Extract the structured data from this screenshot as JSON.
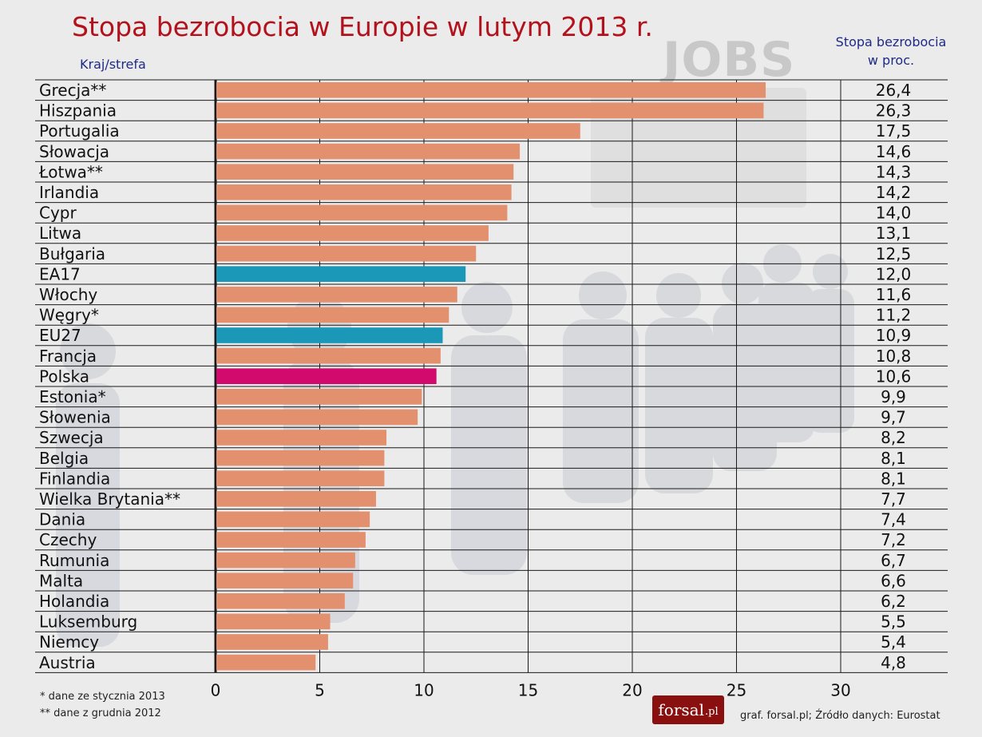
{
  "chart_data": {
    "type": "bar",
    "orientation": "horizontal",
    "title": "Stopa bezrobocia w Europie w lutym 2013 r.",
    "category_header": "Kraj/strefa",
    "value_header_line1": "Stopa bezrobocia",
    "value_header_line2": "w proc.",
    "categories": [
      "Grecja**",
      "Hiszpania",
      "Portugalia",
      "Słowacja",
      "Łotwa**",
      "Irlandia",
      "Cypr",
      "Litwa",
      "Bułgaria",
      "EA17",
      "Włochy",
      "Węgry*",
      "EU27",
      "Francja",
      "Polska",
      "Estonia*",
      "Słowenia",
      "Szwecja",
      "Belgia",
      "Finlandia",
      "Wielka Brytania**",
      "Dania",
      "Czechy",
      "Rumunia",
      "Malta",
      "Holandia",
      "Luksemburg",
      "Niemcy",
      "Austria"
    ],
    "values": [
      26.4,
      26.3,
      17.5,
      14.6,
      14.3,
      14.2,
      14.0,
      13.1,
      12.5,
      12.0,
      11.6,
      11.2,
      10.9,
      10.8,
      10.6,
      9.9,
      9.7,
      8.2,
      8.1,
      8.1,
      7.7,
      7.4,
      7.2,
      6.7,
      6.6,
      6.2,
      5.5,
      5.4,
      4.8
    ],
    "value_labels": [
      "26,4",
      "26,3",
      "17,5",
      "14,6",
      "14,3",
      "14,2",
      "14,0",
      "13,1",
      "12,5",
      "12,0",
      "11,6",
      "11,2",
      "10,9",
      "10,8",
      "10,6",
      "9,9",
      "9,7",
      "8,2",
      "8,1",
      "8,1",
      "7,7",
      "7,4",
      "7,2",
      "6,7",
      "6,6",
      "6,2",
      "5,5",
      "5,4",
      "4,8"
    ],
    "xlim": [
      0,
      30
    ],
    "xticks": [
      0,
      5,
      10,
      15,
      20,
      25,
      30
    ],
    "grid": true,
    "colors": {
      "default": "#e3906f",
      "aggregate": "#1b97b7",
      "highlight": "#d20a6e"
    },
    "bar_color_group": [
      "default",
      "default",
      "default",
      "default",
      "default",
      "default",
      "default",
      "default",
      "default",
      "aggregate",
      "default",
      "default",
      "aggregate",
      "default",
      "highlight",
      "default",
      "default",
      "default",
      "default",
      "default",
      "default",
      "default",
      "default",
      "default",
      "default",
      "default",
      "default",
      "default",
      "default"
    ]
  },
  "background_text": "JOBS",
  "footnotes": [
    "* dane ze stycznia 2013",
    "** dane z grudnia 2012"
  ],
  "logo": {
    "main": "forsal",
    "suffix": ".pl"
  },
  "source": "graf. forsal.pl;  Źródło danych: Eurostat"
}
